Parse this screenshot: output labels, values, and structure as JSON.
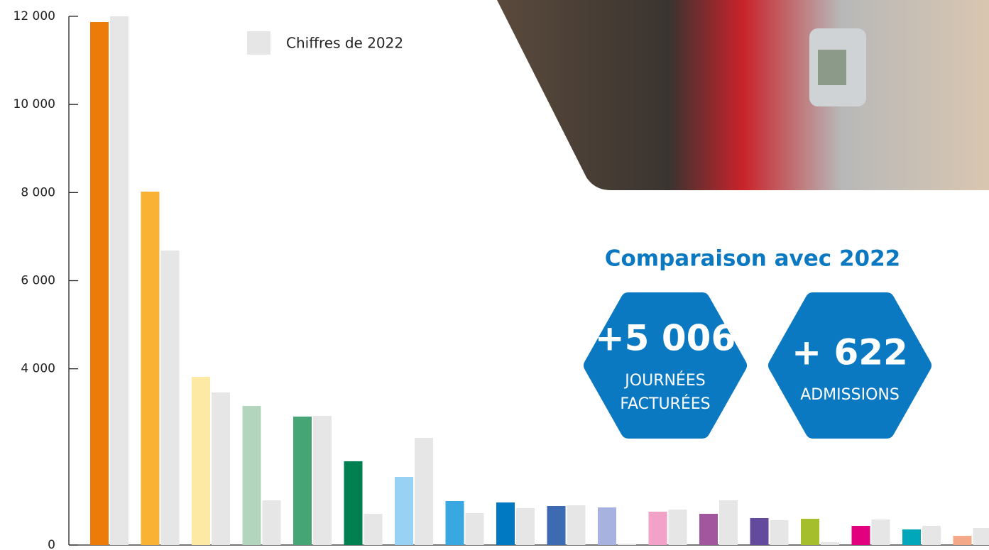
{
  "chart_data": {
    "type": "bar",
    "categories": [
      null,
      null,
      null,
      null,
      null,
      null,
      null,
      null,
      null,
      null,
      null,
      null,
      null,
      null,
      null,
      null,
      null,
      null
    ],
    "series": [
      {
        "colors": [
          "#ec7b0a",
          "#f9b233",
          "#fde9a4",
          "#b3d4bd",
          "#45a574",
          "#008050",
          "#97d2f5",
          "#39a7e0",
          "#0079c2",
          "#3c6bb3",
          "#a7b3de",
          "#f2a2c6",
          "#a1569e",
          "#634a9c",
          "#a5be2b",
          "#e2007e",
          "#00a6b9",
          "#f3a987"
        ],
        "values": [
          11871,
          8021,
          3817,
          3157,
          2915,
          1901,
          1546,
          999,
          966,
          886,
          854,
          757,
          709,
          612,
          596,
          435,
          354,
          209
        ]
      },
      {
        "name": "Chiffres de 2022",
        "color": "#e6e6e6",
        "values": [
          12000,
          6684,
          3463,
          1015,
          2931,
          709,
          2432,
          725,
          838,
          902,
          32,
          805,
          1015,
          564,
          64,
          580,
          435,
          387
        ]
      }
    ],
    "ylim": [
      0,
      12000
    ],
    "yticks": [
      0,
      {
        "value": 4000,
        "label": "4 000"
      },
      {
        "value": 6000,
        "label": "6 000"
      },
      {
        "value": 8000,
        "label": "8 000"
      },
      {
        "value": 10000,
        "label": "10 000"
      },
      {
        "value": 12000,
        "label": "12 000"
      }
    ]
  },
  "highlights": {
    "title": "Comparaison avec 2022",
    "items": [
      {
        "value": "+5 006",
        "lines": [
          "JOURNÉES",
          "FACTURÉES"
        ]
      },
      {
        "value": "+ 622",
        "lines": [
          "ADMISSIONS"
        ]
      }
    ]
  }
}
